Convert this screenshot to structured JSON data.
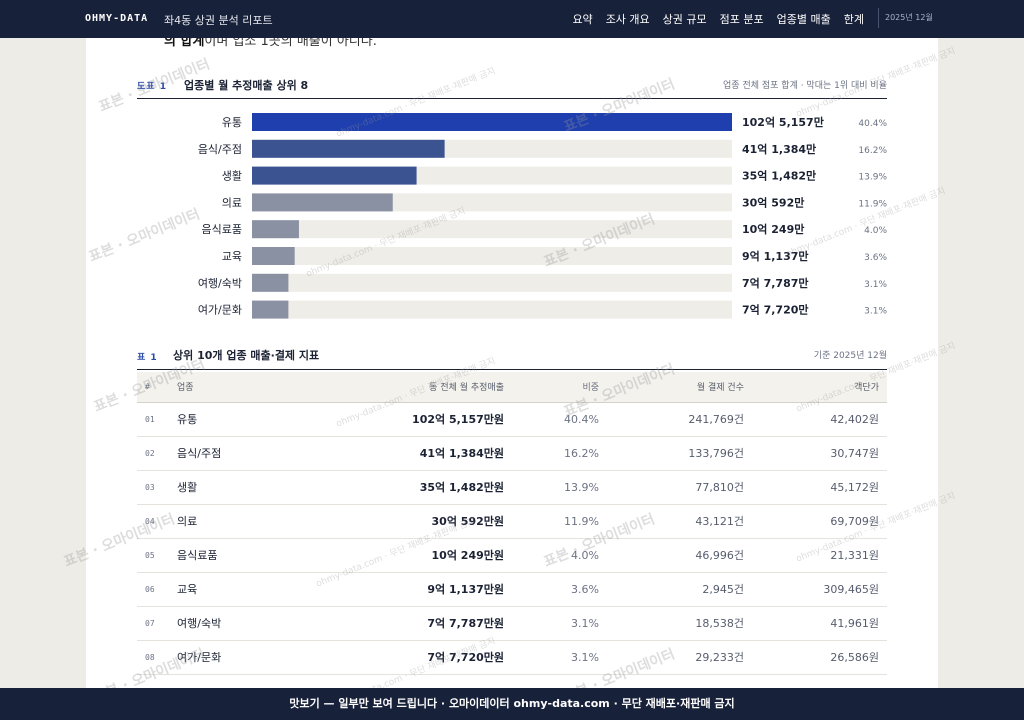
{
  "header": {
    "brand": "OHMY-DATA",
    "doc_title": "좌4동 상권 분석 리포트",
    "nav": [
      "요약",
      "조사 개요",
      "상권 규모",
      "점포 분포",
      "업종별 매출",
      "한계"
    ],
    "date": "2025년 12월"
  },
  "cut_text": {
    "bold": "의 합계",
    "rest": "이며 업소 1곳의 매출이 아니다."
  },
  "figure": {
    "tag": "도표 1",
    "title": "업종별 월 추정매출 상위 8",
    "note": "업종 전체 점포 합계 · 막대는 1위 대비 비율"
  },
  "chart_data": {
    "type": "bar",
    "orientation": "horizontal",
    "categories": [
      "유통",
      "음식/주점",
      "생활",
      "의료",
      "음식료품",
      "교육",
      "여행/숙박",
      "여가/문화"
    ],
    "values": [
      1025157,
      411384,
      351482,
      300592,
      100249,
      91137,
      77787,
      77720
    ],
    "value_labels": [
      "102억 5,157만",
      "41억 1,384만",
      "35억 1,482만",
      "30억 592만",
      "10억 249만",
      "9억 1,137만",
      "7억 7,787만",
      "7억 7,720만"
    ],
    "share_labels": [
      "40.4%",
      "16.2%",
      "13.9%",
      "11.9%",
      "4.0%",
      "3.6%",
      "3.1%",
      "3.1%"
    ],
    "colors": [
      "#1f3fae",
      "#3c5391",
      "#3c5391",
      "#8a91a3",
      "#8a91a3",
      "#8a91a3",
      "#8a91a3",
      "#8a91a3"
    ],
    "track_color": "#efede7"
  },
  "table": {
    "tag": "표 1",
    "title": "상위 10개 업종 매출·결제 지표",
    "note": "기준 2025년 12월",
    "columns": [
      "#",
      "업종",
      "동 전체 월 추정매출",
      "비중",
      "월 결제 건수",
      "객단가"
    ],
    "rows": [
      {
        "no": "01",
        "name": "유통",
        "sales": "102억 5,157만원",
        "share": "40.4%",
        "count": "241,769건",
        "avg": "42,402원"
      },
      {
        "no": "02",
        "name": "음식/주점",
        "sales": "41억 1,384만원",
        "share": "16.2%",
        "count": "133,796건",
        "avg": "30,747원"
      },
      {
        "no": "03",
        "name": "생활",
        "sales": "35억 1,482만원",
        "share": "13.9%",
        "count": "77,810건",
        "avg": "45,172원"
      },
      {
        "no": "04",
        "name": "의료",
        "sales": "30억 592만원",
        "share": "11.9%",
        "count": "43,121건",
        "avg": "69,709원"
      },
      {
        "no": "05",
        "name": "음식료품",
        "sales": "10억 249만원",
        "share": "4.0%",
        "count": "46,996건",
        "avg": "21,331원"
      },
      {
        "no": "06",
        "name": "교육",
        "sales": "9억 1,137만원",
        "share": "3.6%",
        "count": "2,945건",
        "avg": "309,465원"
      },
      {
        "no": "07",
        "name": "여행/숙박",
        "sales": "7억 7,787만원",
        "share": "3.1%",
        "count": "18,538건",
        "avg": "41,961원"
      },
      {
        "no": "08",
        "name": "여가/문화",
        "sales": "7억 7,720만원",
        "share": "3.1%",
        "count": "29,233건",
        "avg": "26,586원"
      }
    ]
  },
  "watermark": {
    "main": "표본 · 오마이데이터",
    "sub": "ohmy-data.com · 무단 재배포·재판매 금지"
  },
  "footer": {
    "text": "맛보기 — 일부만 보여 드립니다 · 오마이데이터 ohmy-data.com · 무단 재배포·재판매 금지"
  }
}
